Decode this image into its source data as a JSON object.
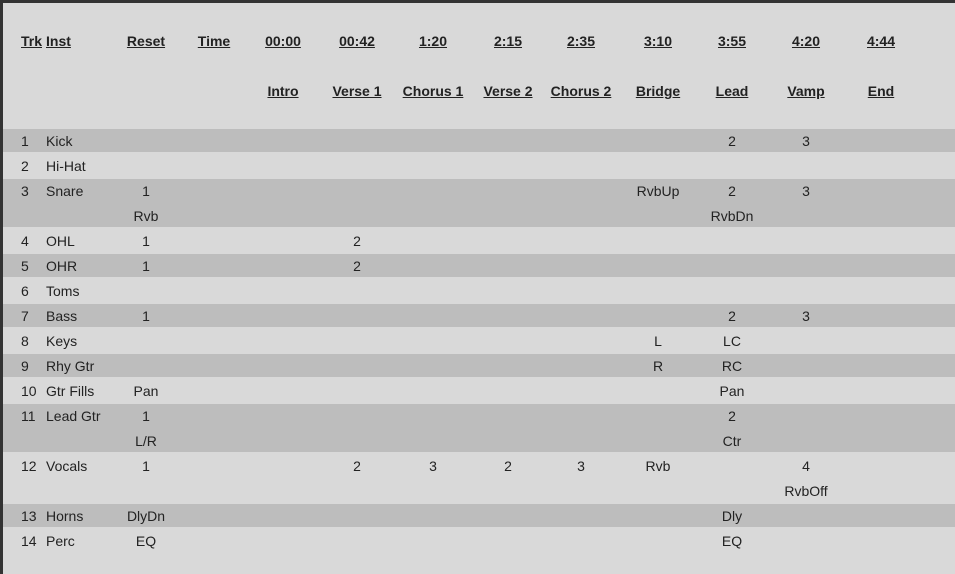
{
  "table": {
    "columns": [
      "Trk",
      "Inst",
      "Reset",
      "Time",
      "00:00",
      "00:42",
      "1:20",
      "2:15",
      "2:35",
      "3:10",
      "3:55",
      "4:20",
      "4:44"
    ],
    "sections": [
      "Intro",
      "Verse 1",
      "Chorus 1",
      "Verse 2",
      "Chorus 2",
      "Bridge",
      "Lead",
      "Vamp",
      "End"
    ],
    "rows": [
      {
        "trk": "1",
        "inst": "Kick",
        "lines": [
          [
            null,
            null,
            null,
            null,
            null,
            null,
            null,
            null,
            "2",
            "3",
            null
          ]
        ]
      },
      {
        "trk": "2",
        "inst": "Hi-Hat",
        "lines": [
          [
            null,
            null,
            null,
            null,
            null,
            null,
            null,
            null,
            null,
            null,
            null
          ]
        ]
      },
      {
        "trk": "3",
        "inst": "Snare",
        "lines": [
          [
            "1",
            null,
            null,
            null,
            null,
            null,
            null,
            "RvbUp",
            "2",
            "3",
            null
          ],
          [
            "Rvb",
            null,
            null,
            null,
            null,
            null,
            null,
            null,
            "RvbDn",
            null,
            null
          ]
        ]
      },
      {
        "trk": "4",
        "inst": "OHL",
        "lines": [
          [
            "1",
            null,
            null,
            "2",
            null,
            null,
            null,
            null,
            null,
            null,
            null
          ]
        ]
      },
      {
        "trk": "5",
        "inst": "OHR",
        "lines": [
          [
            "1",
            null,
            null,
            "2",
            null,
            null,
            null,
            null,
            null,
            null,
            null
          ]
        ]
      },
      {
        "trk": "6",
        "inst": "Toms",
        "lines": [
          [
            null,
            null,
            null,
            null,
            null,
            null,
            null,
            null,
            null,
            null,
            null
          ]
        ]
      },
      {
        "trk": "7",
        "inst": "Bass",
        "lines": [
          [
            "1",
            null,
            null,
            null,
            null,
            null,
            null,
            null,
            "2",
            "3",
            null
          ]
        ]
      },
      {
        "trk": "8",
        "inst": "Keys",
        "lines": [
          [
            null,
            null,
            null,
            null,
            null,
            null,
            null,
            "L",
            "LC",
            null,
            null
          ]
        ]
      },
      {
        "trk": "9",
        "inst": "Rhy Gtr",
        "lines": [
          [
            null,
            null,
            null,
            null,
            null,
            null,
            null,
            "R",
            "RC",
            null,
            null
          ]
        ]
      },
      {
        "trk": "10",
        "inst": "Gtr Fills",
        "lines": [
          [
            "Pan",
            null,
            null,
            null,
            null,
            null,
            null,
            null,
            "Pan",
            null,
            null
          ]
        ]
      },
      {
        "trk": "11",
        "inst": "Lead Gtr",
        "lines": [
          [
            "1",
            null,
            null,
            null,
            null,
            null,
            null,
            null,
            "2",
            null,
            null
          ],
          [
            "L/R",
            null,
            null,
            null,
            null,
            null,
            null,
            null,
            "Ctr",
            null,
            null
          ]
        ]
      },
      {
        "trk": "12",
        "inst": "Vocals",
        "lines": [
          [
            "1",
            null,
            null,
            "2",
            "3",
            "2",
            "3",
            "Rvb",
            null,
            "4",
            null
          ],
          [
            null,
            null,
            null,
            null,
            null,
            null,
            null,
            null,
            null,
            "RvbOff",
            null
          ]
        ]
      },
      {
        "trk": "13",
        "inst": "Horns",
        "lines": [
          [
            "DlyDn",
            null,
            null,
            null,
            null,
            null,
            null,
            null,
            "Dly",
            null,
            null
          ]
        ]
      },
      {
        "trk": "14",
        "inst": "Perc",
        "lines": [
          [
            "EQ",
            null,
            null,
            null,
            null,
            null,
            null,
            null,
            "EQ",
            null,
            null
          ]
        ]
      }
    ]
  }
}
